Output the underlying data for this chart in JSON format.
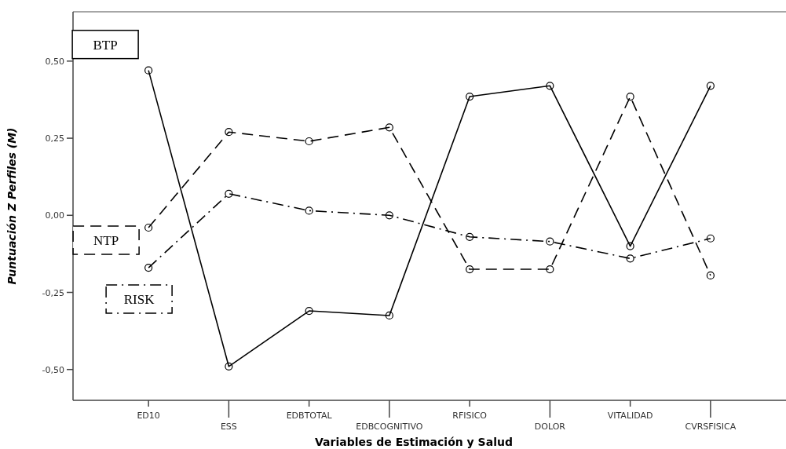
{
  "chart_data": {
    "type": "line",
    "xlabel": "Variables de Estimación y Salud",
    "ylabel": "Puntuación Z Perfiles (M)",
    "categories": [
      "ED10",
      "ESS",
      "EDBTOTAL",
      "EDBCOGNITIVO",
      "RFISICO",
      "DOLOR",
      "VITALIDAD",
      "CVRSFISICA"
    ],
    "ylim": [
      -0.6,
      0.66
    ],
    "yticks": [
      {
        "value": -0.5,
        "label": "-0,50"
      },
      {
        "value": -0.25,
        "label": "-0,25"
      },
      {
        "value": 0,
        "label": "0,00"
      },
      {
        "value": 0.25,
        "label": "0,25"
      },
      {
        "value": 0.5,
        "label": "0,50"
      }
    ],
    "grid": false,
    "marker": "circle",
    "series": [
      {
        "name": "BTP",
        "color": "#000000",
        "line_style": "solid",
        "values": [
          0.47,
          -0.49,
          -0.31,
          -0.325,
          0.385,
          0.42,
          -0.1,
          0.42
        ]
      },
      {
        "name": "NTP",
        "color": "#000000",
        "line_style": "dashed",
        "values": [
          -0.04,
          0.27,
          0.24,
          0.285,
          -0.175,
          -0.175,
          0.385,
          -0.195
        ]
      },
      {
        "name": "RISK",
        "color": "#000000",
        "line_style": "dashdot",
        "values": [
          -0.17,
          0.07,
          0.015,
          0.0,
          -0.07,
          -0.085,
          -0.14,
          -0.075
        ]
      }
    ]
  }
}
